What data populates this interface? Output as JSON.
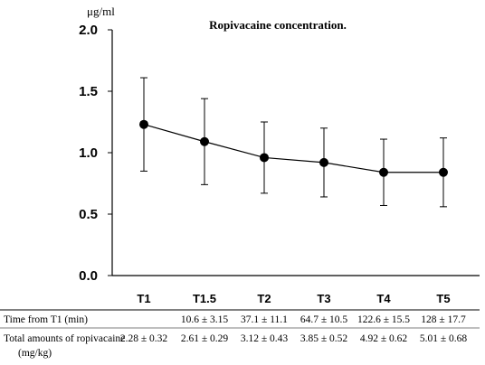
{
  "chart_data": {
    "type": "line",
    "title": "Ropivacaine concentration.",
    "ylabel": "μg/ml",
    "ylim": [
      0.0,
      2.0
    ],
    "yticks": [
      "0.0",
      "0.5",
      "1.0",
      "1.5",
      "2.0"
    ],
    "categories": [
      "T1",
      "T1.5",
      "T2",
      "T3",
      "T4",
      "T5"
    ],
    "series": [
      {
        "values": [
          1.23,
          1.09,
          0.96,
          0.92,
          0.84,
          0.84
        ],
        "error": [
          0.38,
          0.35,
          0.29,
          0.28,
          0.27,
          0.28
        ]
      }
    ],
    "grid": false
  },
  "table": {
    "rows": [
      {
        "label": "Time from T1 (min)",
        "cells": [
          "",
          "10.6 ± 3.15",
          "37.1 ± 11.1",
          "64.7 ± 10.5",
          "122.6 ± 15.5",
          "128 ±  17.7"
        ]
      },
      {
        "label": "Total amounts of ropivacaine",
        "sublabel": "(mg/kg)",
        "cells": [
          "2.28 ± 0.32",
          "2.61 ± 0.29",
          "3.12 ± 0.43",
          "3.85 ± 0.52",
          "4.92 ± 0.62",
          "5.01 ± 0.68"
        ]
      }
    ]
  }
}
